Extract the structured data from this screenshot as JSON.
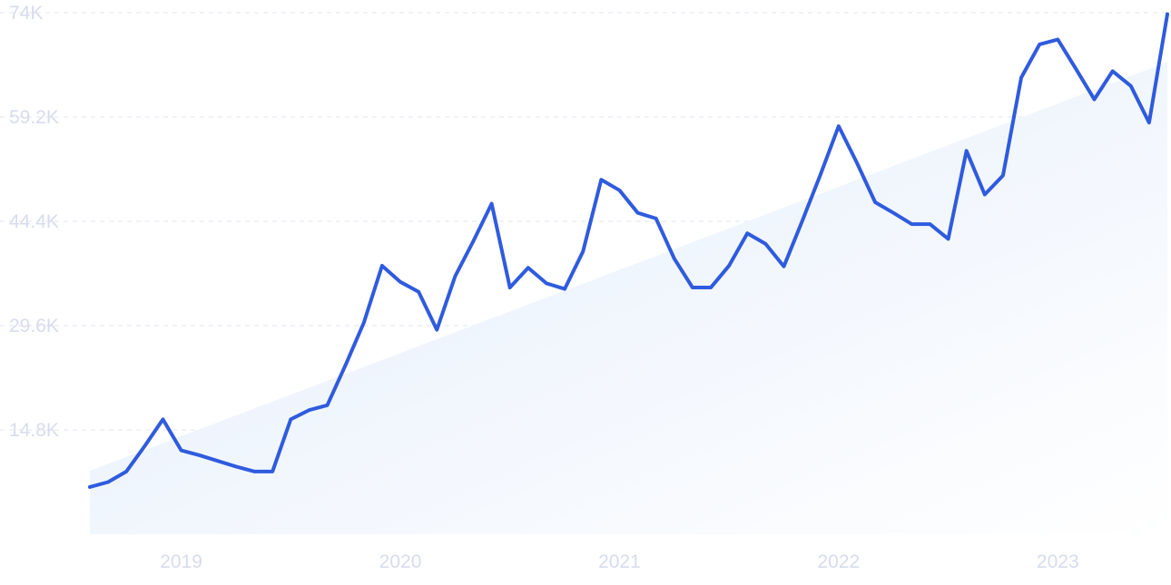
{
  "chart_data": {
    "type": "line",
    "title": "",
    "xlabel": "",
    "ylabel": "",
    "ylim": [
      0,
      74000
    ],
    "y_ticks": [
      14800,
      29600,
      44400,
      59200,
      74000
    ],
    "y_tick_labels": [
      "14.8K",
      "29.6K",
      "44.4K",
      "59.2K",
      "74K"
    ],
    "x_range": [
      "2018-08",
      "2023-07"
    ],
    "x_ticks": [
      "2019-01",
      "2020-01",
      "2021-01",
      "2022-01",
      "2023-01"
    ],
    "x_tick_labels": [
      "2019",
      "2020",
      "2021",
      "2022",
      "2023"
    ],
    "grid": true,
    "colors": {
      "line": "#2f5bde",
      "trend_fill_top": "#e3edfb",
      "trend_fill_bottom": "#ffffff",
      "grid": "#dfe5ef",
      "tick_text": "#d7dcee"
    },
    "series": [
      {
        "x": [
          "2018-08",
          "2018-09",
          "2018-10",
          "2018-11",
          "2018-12",
          "2019-01",
          "2019-02",
          "2019-03",
          "2019-04",
          "2019-05",
          "2019-06",
          "2019-07",
          "2019-08",
          "2019-09",
          "2019-10",
          "2019-11",
          "2019-12",
          "2020-01",
          "2020-02",
          "2020-03",
          "2020-04",
          "2020-05",
          "2020-06",
          "2020-07",
          "2020-08",
          "2020-09",
          "2020-10",
          "2020-11",
          "2020-12",
          "2021-01",
          "2021-02",
          "2021-03",
          "2021-04",
          "2021-05",
          "2021-06",
          "2021-07",
          "2021-08",
          "2021-09",
          "2021-10",
          "2021-11",
          "2021-12",
          "2022-01",
          "2022-02",
          "2022-03",
          "2022-04",
          "2022-05",
          "2022-06",
          "2022-07",
          "2022-08",
          "2022-09",
          "2022-10",
          "2022-11",
          "2022-12",
          "2023-01",
          "2023-02",
          "2023-03",
          "2023-04",
          "2023-05",
          "2023-06",
          "2023-07"
        ],
        "values": [
          6700,
          7400,
          8900,
          12500,
          16300,
          11900,
          11200,
          10400,
          9600,
          8900,
          8900,
          16300,
          17600,
          18300,
          24000,
          30000,
          38100,
          35800,
          34400,
          29000,
          36600,
          41600,
          46900,
          35000,
          37800,
          35600,
          34800,
          40100,
          50300,
          48800,
          45600,
          44800,
          39100,
          35000,
          35000,
          38100,
          42700,
          41200,
          38000,
          44400,
          51000,
          57900,
          52700,
          47100,
          45600,
          44000,
          44000,
          41900,
          54400,
          48200,
          50900,
          64800,
          69500,
          70200,
          66000,
          61700,
          65700,
          63600,
          58400,
          73800
        ]
      },
      {
        "name": "trend",
        "x": [
          "2018-08",
          "2023-07"
        ],
        "values": [
          9000,
          67000
        ]
      }
    ]
  }
}
